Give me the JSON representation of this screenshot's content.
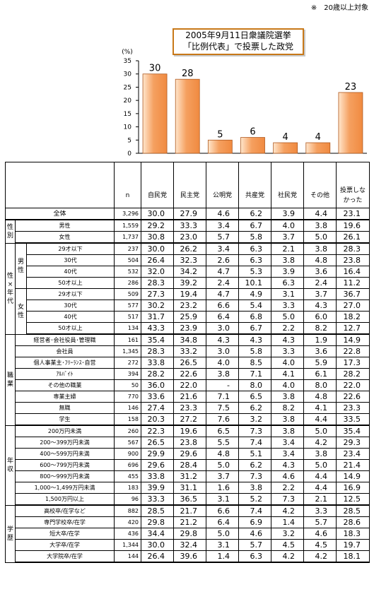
{
  "note": "※　20歳以上対象",
  "title_line1": "2005年9月11日衆議院選挙",
  "title_line2": "「比例代表」で投票した政党",
  "chart_data": {
    "type": "bar",
    "title": "2005年9月11日衆議院選挙「比例代表」で投票した政党",
    "ylabel": "(%)",
    "ylim": [
      0,
      35
    ],
    "yticks": [
      "0",
      "5",
      "10",
      "15",
      "20",
      "25",
      "30",
      "35"
    ],
    "categories": [
      "自民党",
      "民主党",
      "公明党",
      "共産党",
      "社民党",
      "その他",
      "投票しなかった"
    ],
    "values": [
      30,
      28,
      5,
      6,
      4,
      4,
      23
    ],
    "value_labels": [
      "30",
      "28",
      "5",
      "6",
      "4",
      "4",
      "23"
    ],
    "bar_color": "#f08a40"
  },
  "table": {
    "n_header": "n",
    "headers": [
      "自民党",
      "民主党",
      "公明党",
      "共産党",
      "社民党",
      "その他",
      "投票しな\nかった"
    ],
    "groups": [
      {
        "label": "",
        "sub": "",
        "rows": [
          {
            "label": "全体",
            "n": "3,296",
            "v": [
              "30.0",
              "27.9",
              "4.6",
              "6.2",
              "3.9",
              "4.4",
              "23.1"
            ]
          }
        ]
      },
      {
        "label": "性\n別",
        "sub": "",
        "rows": [
          {
            "label": "男性",
            "n": "1,559",
            "v": [
              "29.2",
              "33.3",
              "3.4",
              "6.7",
              "4.0",
              "3.8",
              "19.6"
            ]
          },
          {
            "label": "女性",
            "n": "1,737",
            "v": [
              "30.8",
              "23.0",
              "5.7",
              "5.8",
              "3.7",
              "5.0",
              "26.1"
            ]
          }
        ]
      },
      {
        "label": "性\n×\n年\n代",
        "sub": "男\n性",
        "rows": [
          {
            "label": "29才以下",
            "n": "237",
            "v": [
              "30.0",
              "26.2",
              "3.4",
              "6.3",
              "2.1",
              "3.8",
              "28.3"
            ]
          },
          {
            "label": "30代",
            "n": "504",
            "v": [
              "26.4",
              "32.3",
              "2.6",
              "6.3",
              "3.8",
              "4.8",
              "23.8"
            ]
          },
          {
            "label": "40代",
            "n": "532",
            "v": [
              "32.0",
              "34.2",
              "4.7",
              "5.3",
              "3.9",
              "3.6",
              "16.4"
            ]
          },
          {
            "label": "50才以上",
            "n": "286",
            "v": [
              "28.3",
              "39.2",
              "2.4",
              "10.1",
              "6.3",
              "2.4",
              "11.2"
            ]
          }
        ]
      },
      {
        "label": "",
        "sub": "女\n性",
        "rows": [
          {
            "label": "29才以下",
            "n": "509",
            "v": [
              "27.3",
              "19.4",
              "4.7",
              "4.9",
              "3.1",
              "3.7",
              "36.7"
            ]
          },
          {
            "label": "30代",
            "n": "577",
            "v": [
              "30.2",
              "23.2",
              "6.6",
              "5.4",
              "3.3",
              "4.3",
              "27.0"
            ]
          },
          {
            "label": "40代",
            "n": "517",
            "v": [
              "31.7",
              "25.9",
              "6.4",
              "6.8",
              "5.0",
              "6.0",
              "18.2"
            ]
          },
          {
            "label": "50才以上",
            "n": "134",
            "v": [
              "43.3",
              "23.9",
              "3.0",
              "6.7",
              "2.2",
              "8.2",
              "12.7"
            ]
          }
        ]
      },
      {
        "label": "職\n業",
        "sub": "",
        "rows": [
          {
            "label": "経営者･会社役員･管理職",
            "n": "161",
            "v": [
              "35.4",
              "34.8",
              "4.3",
              "4.3",
              "4.3",
              "1.9",
              "14.9"
            ]
          },
          {
            "label": "会社員",
            "n": "1,345",
            "v": [
              "28.3",
              "33.2",
              "3.0",
              "5.8",
              "3.3",
              "3.6",
              "22.8"
            ]
          },
          {
            "label": "個人事業主･ﾌﾘｰﾗﾝｽ･自営",
            "n": "272",
            "v": [
              "33.8",
              "26.5",
              "4.0",
              "8.5",
              "4.0",
              "5.9",
              "17.3"
            ]
          },
          {
            "label": "ｱﾙﾊﾞｲﾄ",
            "n": "394",
            "v": [
              "28.2",
              "22.6",
              "3.8",
              "7.1",
              "4.1",
              "6.1",
              "28.2"
            ]
          },
          {
            "label": "その他の職業",
            "n": "50",
            "v": [
              "36.0",
              "22.0",
              "-",
              "8.0",
              "4.0",
              "8.0",
              "22.0"
            ]
          },
          {
            "label": "専業主婦",
            "n": "770",
            "v": [
              "33.6",
              "21.6",
              "7.1",
              "6.5",
              "3.8",
              "4.8",
              "22.6"
            ]
          },
          {
            "label": "無職",
            "n": "146",
            "v": [
              "27.4",
              "23.3",
              "7.5",
              "6.2",
              "8.2",
              "4.1",
              "23.3"
            ]
          },
          {
            "label": "学生",
            "n": "158",
            "v": [
              "20.3",
              "27.2",
              "7.6",
              "3.2",
              "3.8",
              "4.4",
              "33.5"
            ]
          }
        ]
      },
      {
        "label": "年\n収",
        "sub": "",
        "rows": [
          {
            "label": "200万円未満",
            "n": "260",
            "v": [
              "22.3",
              "19.6",
              "6.5",
              "7.3",
              "3.8",
              "5.0",
              "35.4"
            ]
          },
          {
            "label": "200～399万円未満",
            "n": "567",
            "v": [
              "26.5",
              "23.8",
              "5.5",
              "7.4",
              "3.4",
              "4.2",
              "29.3"
            ]
          },
          {
            "label": "400～599万円未満",
            "n": "900",
            "v": [
              "29.9",
              "29.6",
              "4.8",
              "5.1",
              "3.4",
              "3.8",
              "23.4"
            ]
          },
          {
            "label": "600～799万円未満",
            "n": "696",
            "v": [
              "29.6",
              "28.4",
              "5.0",
              "6.2",
              "4.3",
              "5.0",
              "21.4"
            ]
          },
          {
            "label": "800～999万円未満",
            "n": "455",
            "v": [
              "33.8",
              "31.2",
              "3.7",
              "7.3",
              "4.6",
              "4.4",
              "14.9"
            ]
          },
          {
            "label": "1,000～1,499万円未満",
            "n": "183",
            "v": [
              "39.9",
              "31.1",
              "1.6",
              "3.8",
              "2.2",
              "4.4",
              "16.9"
            ]
          },
          {
            "label": "1,500万円以上",
            "n": "96",
            "v": [
              "33.3",
              "36.5",
              "3.1",
              "5.2",
              "7.3",
              "2.1",
              "12.5"
            ]
          }
        ]
      },
      {
        "label": "学\n歴",
        "sub": "",
        "rows": [
          {
            "label": "高校卒/在学など",
            "n": "882",
            "v": [
              "28.5",
              "21.7",
              "6.6",
              "7.4",
              "4.2",
              "3.3",
              "28.5"
            ]
          },
          {
            "label": "専門学校卒/在学",
            "n": "420",
            "v": [
              "29.8",
              "21.2",
              "6.4",
              "6.9",
              "1.4",
              "5.7",
              "28.6"
            ]
          },
          {
            "label": "短大卒/在学",
            "n": "436",
            "v": [
              "34.4",
              "29.8",
              "5.0",
              "4.6",
              "3.2",
              "4.6",
              "18.3"
            ]
          },
          {
            "label": "大学卒/在学",
            "n": "1,344",
            "v": [
              "30.0",
              "32.4",
              "3.1",
              "5.7",
              "4.5",
              "4.5",
              "19.7"
            ]
          },
          {
            "label": "大学院卒/在学",
            "n": "144",
            "v": [
              "26.4",
              "39.6",
              "1.4",
              "6.3",
              "4.2",
              "4.2",
              "18.1"
            ]
          }
        ]
      }
    ]
  }
}
